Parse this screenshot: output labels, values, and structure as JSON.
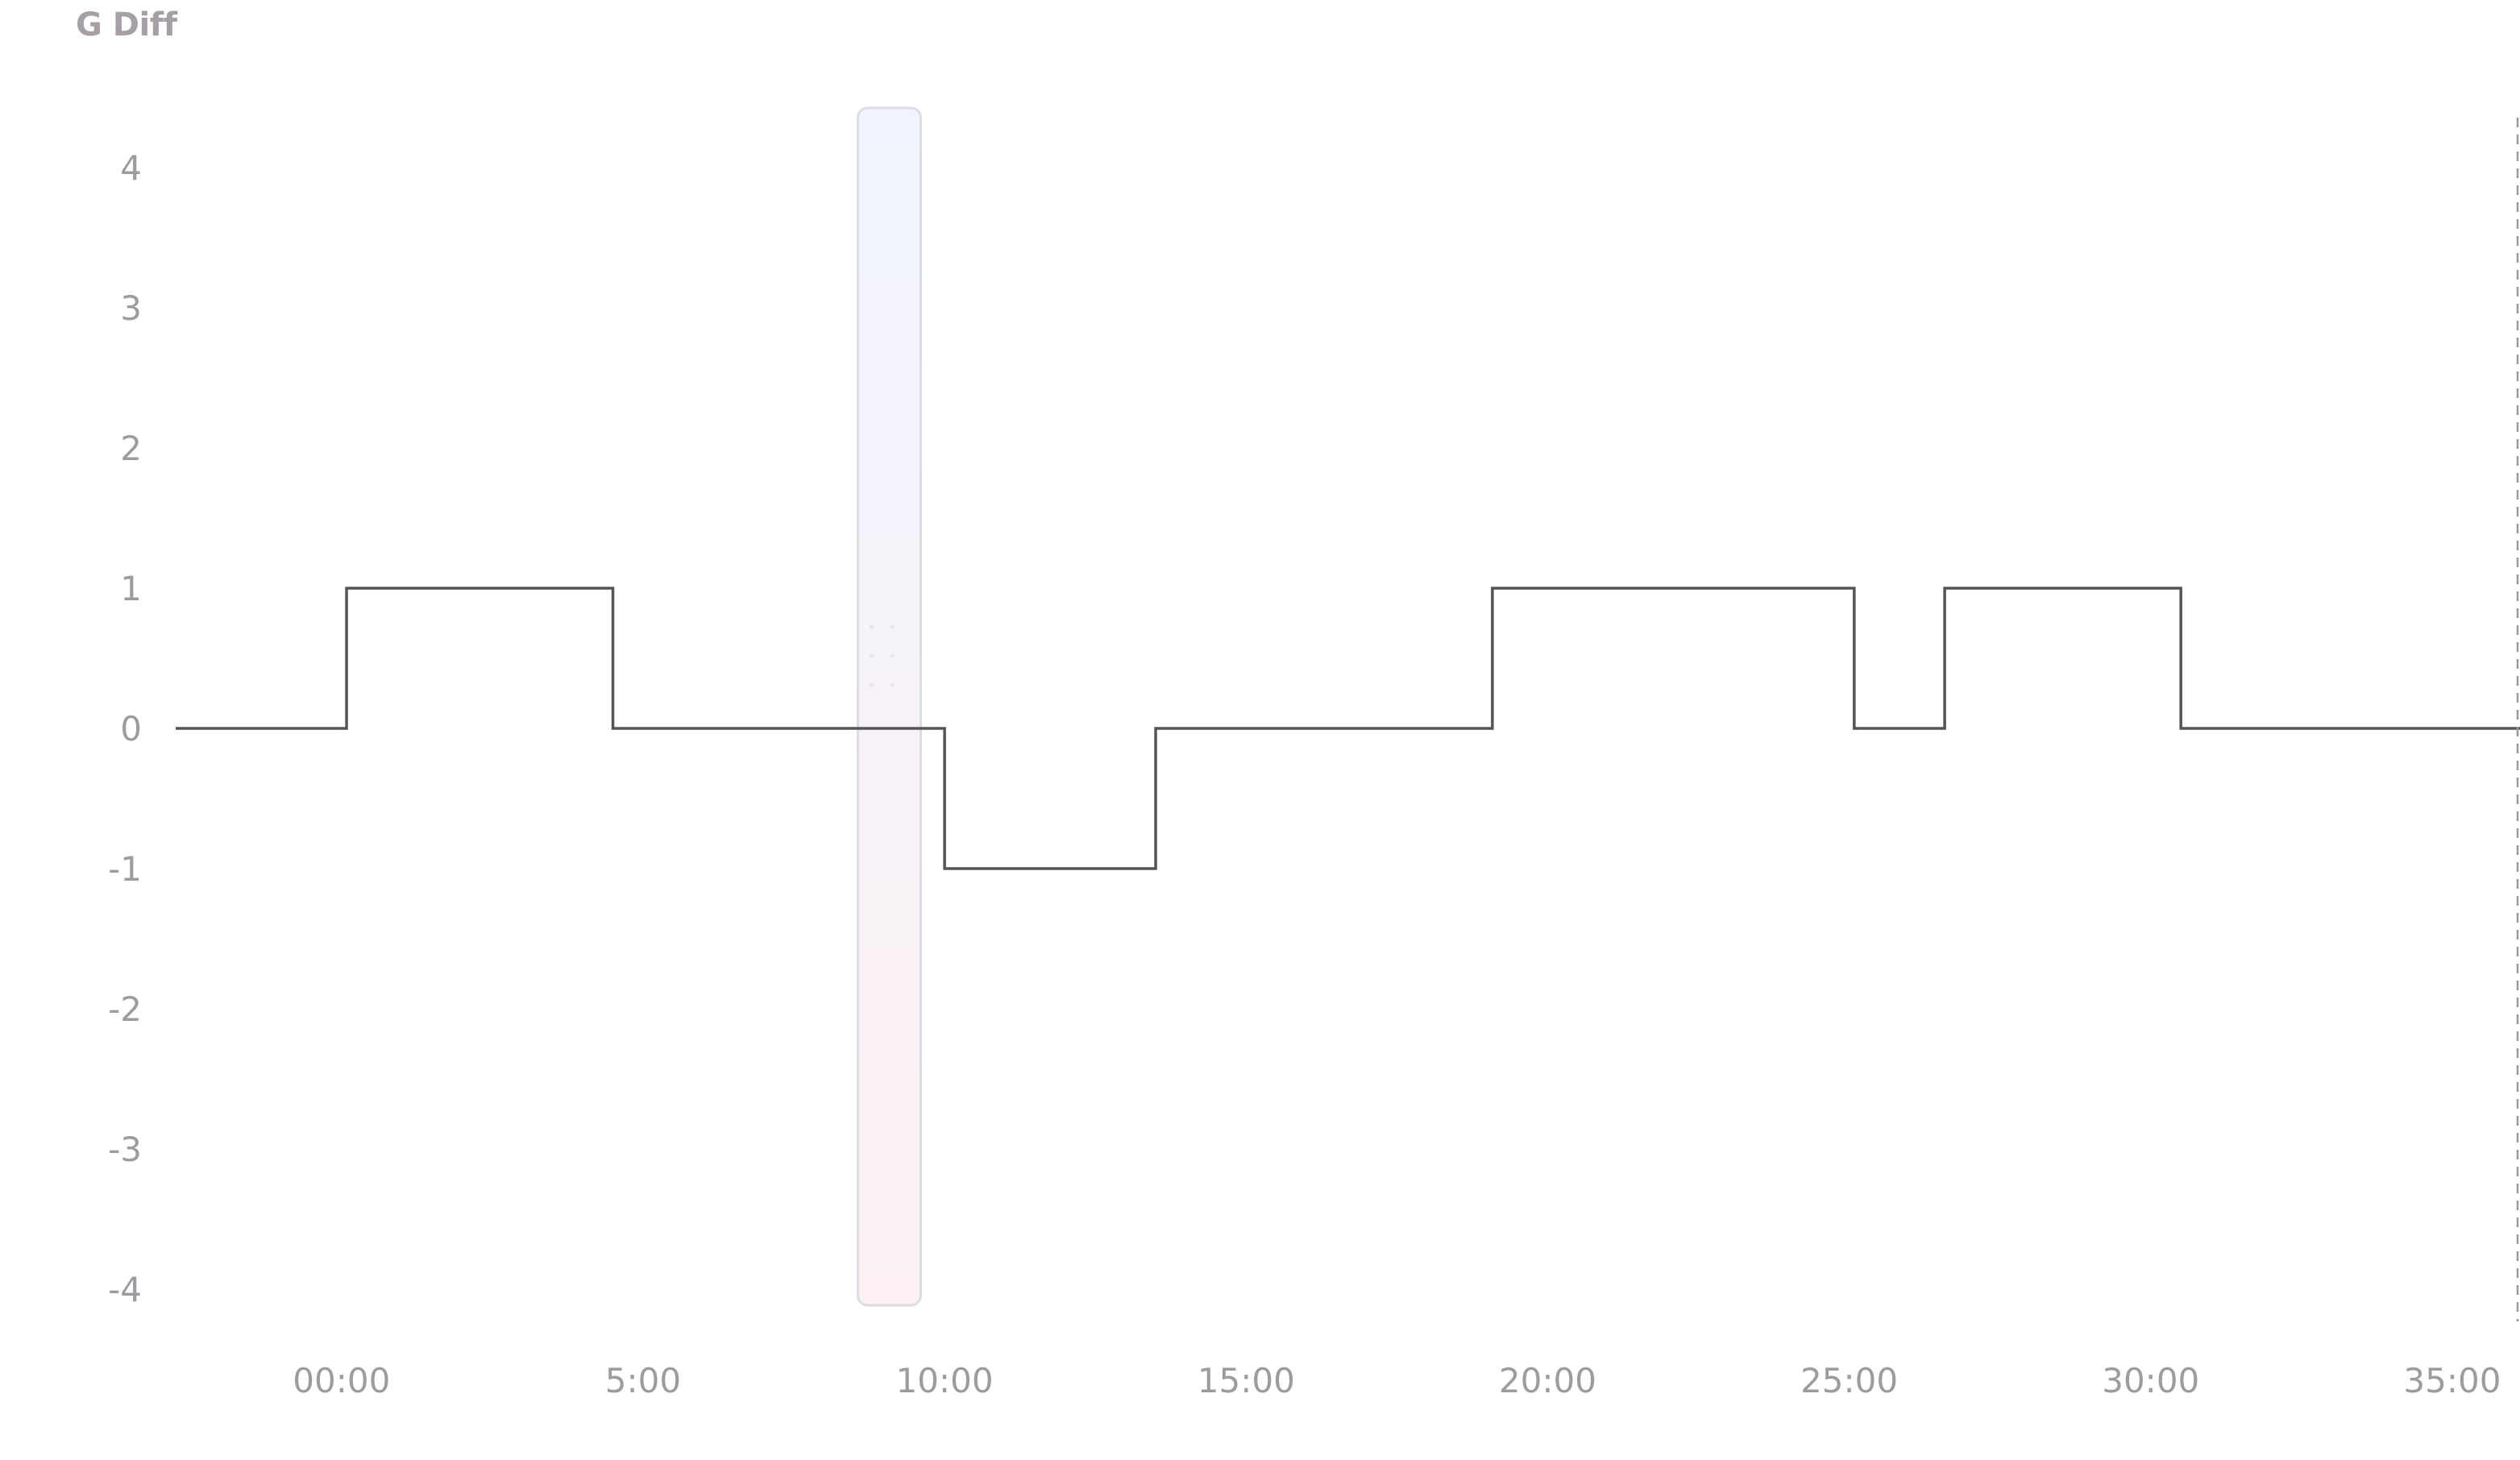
{
  "chart_data": {
    "type": "line",
    "title": "G Diff",
    "xlabel": "",
    "ylabel": "",
    "line_shape": "step",
    "x_tick_labels": [
      "00:00",
      "5:00",
      "10:00",
      "15:00",
      "20:00",
      "25:00",
      "30:00",
      "35:00"
    ],
    "x_tick_values_sec": [
      0,
      300,
      600,
      900,
      1200,
      1500,
      1800,
      2100
    ],
    "y_ticks": [
      4,
      3,
      2,
      1,
      0,
      -1,
      -2,
      -3,
      -4
    ],
    "ylim": [
      -4,
      4
    ],
    "xlim_sec": [
      -165,
      2165
    ],
    "series": [
      {
        "values": [
          {
            "x": "-2:45",
            "x_sec": -165,
            "y": 0
          },
          {
            "x": "0:05",
            "x_sec": 5,
            "y": 1
          },
          {
            "x": "4:30",
            "x_sec": 270,
            "y": 0
          },
          {
            "x": "10:00",
            "x_sec": 600,
            "y": -1
          },
          {
            "x": "13:30",
            "x_sec": 810,
            "y": 0
          },
          {
            "x": "19:05",
            "x_sec": 1145,
            "y": 1
          },
          {
            "x": "25:05",
            "x_sec": 1505,
            "y": 0
          },
          {
            "x": "26:35",
            "x_sec": 1595,
            "y": 1
          },
          {
            "x": "30:30",
            "x_sec": 1830,
            "y": 0
          },
          {
            "x": "36:15",
            "x_sec": 2175,
            "y": 0
          }
        ]
      }
    ],
    "cursor_x_sec": 545,
    "end_marker_x_sec": 2180,
    "grid": false,
    "colors": {
      "line": "#555555",
      "tick_text": "#9d9aa0",
      "title_text": "#a79fa6",
      "cursor_top": "#f1f4ff",
      "cursor_bottom": "#fdf1f3",
      "cursor_border": "#dcdde3",
      "end_marker": "#9a9a9a"
    }
  }
}
